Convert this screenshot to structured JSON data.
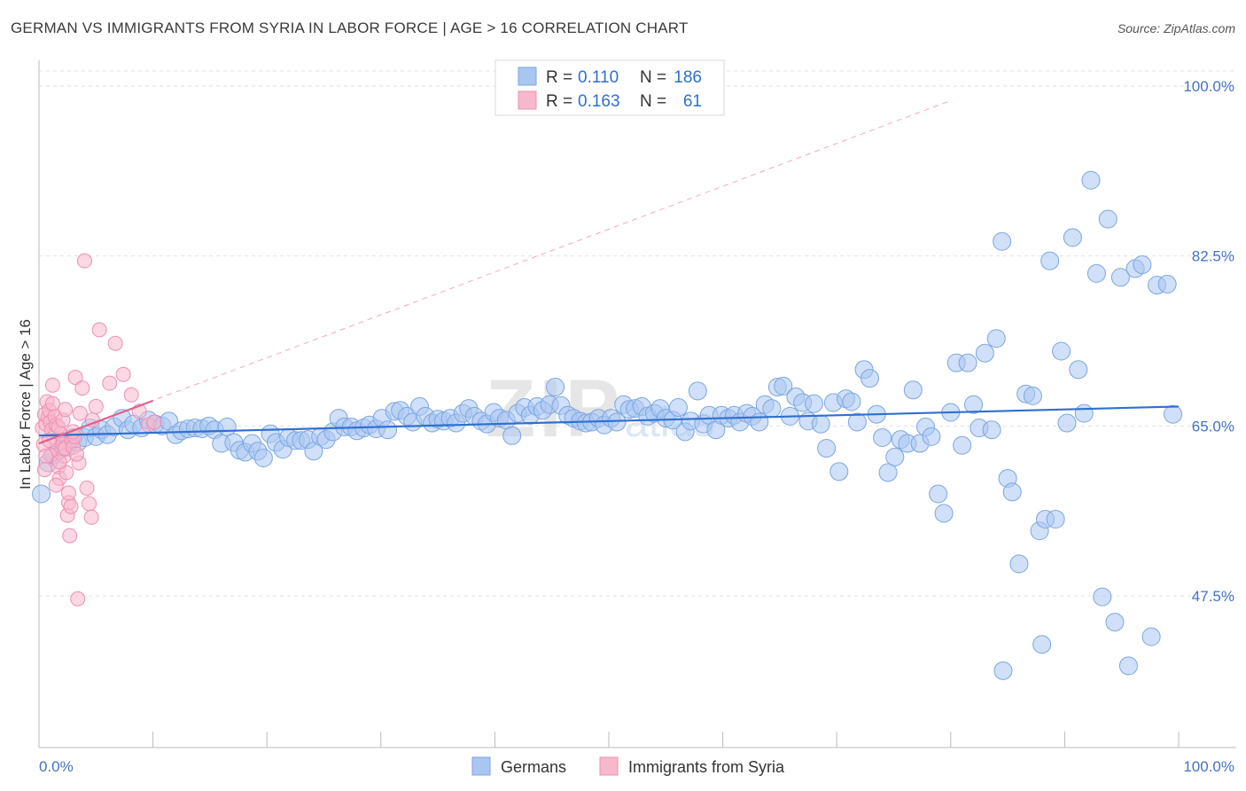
{
  "title": "GERMAN VS IMMIGRANTS FROM SYRIA IN LABOR FORCE | AGE > 16 CORRELATION CHART",
  "source": "Source: ZipAtlas.com",
  "watermark": {
    "zip": "ZIP",
    "atlas": "atlas"
  },
  "legend": {
    "rows": [
      {
        "r_label": "R =",
        "r_value": "0.110",
        "n_label": "N =",
        "n_value": "186",
        "color": "#a9c6f2"
      },
      {
        "r_label": "R =",
        "r_value": "0.163",
        "n_label": "N =",
        "n_value": "61",
        "color": "#f7b8cc"
      }
    ]
  },
  "bottom_legend": [
    "Germans",
    "Immigrants from Syria"
  ],
  "chart_data": {
    "type": "scatter",
    "ylabel": "In Labor Force | Age > 16",
    "xlim": [
      0,
      100
    ],
    "ylim": [
      30,
      100
    ],
    "y_ticks": [
      {
        "value": 100,
        "label": "100.0%"
      },
      {
        "value": 82.5,
        "label": "82.5%"
      },
      {
        "value": 65,
        "label": "65.0%"
      },
      {
        "value": 47.5,
        "label": "47.5%"
      }
    ],
    "x_tick_labels": {
      "left": "0.0%",
      "right": "100.0%"
    },
    "grid": true,
    "legend_position": "top-center",
    "series": [
      {
        "name": "Germans",
        "color": "#7aa6e0",
        "fill": "#a9c6f2",
        "trend": {
          "x0": 0,
          "y0": 64.0,
          "x1": 100,
          "y1": 67.0
        },
        "points": [
          [
            0.2,
            58
          ],
          [
            0.8,
            61.2
          ],
          [
            1.3,
            62
          ],
          [
            1.8,
            62.5
          ],
          [
            2.2,
            63.4
          ],
          [
            2.5,
            62.8
          ],
          [
            3,
            63.8
          ],
          [
            3.4,
            63.3
          ],
          [
            4,
            63.8
          ],
          [
            4.5,
            64.8
          ],
          [
            5,
            63.9
          ],
          [
            5.5,
            64.6
          ],
          [
            6,
            64.1
          ],
          [
            6.6,
            64.9
          ],
          [
            7.3,
            65.8
          ],
          [
            7.8,
            64.6
          ],
          [
            8.3,
            65.2
          ],
          [
            9,
            64.8
          ],
          [
            9.6,
            65.6
          ],
          [
            10.2,
            65.2
          ],
          [
            10.8,
            65
          ],
          [
            11.4,
            65.5
          ],
          [
            12,
            64.1
          ],
          [
            12.5,
            64.5
          ],
          [
            13.1,
            64.7
          ],
          [
            13.7,
            64.8
          ],
          [
            14.3,
            64.7
          ],
          [
            14.9,
            65
          ],
          [
            15.4,
            64.6
          ],
          [
            16,
            63.2
          ],
          [
            16.5,
            64.9
          ],
          [
            17.1,
            63.3
          ],
          [
            17.6,
            62.5
          ],
          [
            18.1,
            62.3
          ],
          [
            18.7,
            63.2
          ],
          [
            19.2,
            62.4
          ],
          [
            19.7,
            61.7
          ],
          [
            20.3,
            64.2
          ],
          [
            20.8,
            63.3
          ],
          [
            21.4,
            62.6
          ],
          [
            21.9,
            63.8
          ],
          [
            22.5,
            63.5
          ],
          [
            23,
            63.5
          ],
          [
            23.6,
            63.6
          ],
          [
            24.1,
            62.4
          ],
          [
            24.7,
            63.9
          ],
          [
            25.2,
            63.6
          ],
          [
            25.8,
            64.4
          ],
          [
            26.3,
            65.8
          ],
          [
            26.8,
            64.9
          ],
          [
            27.4,
            64.9
          ],
          [
            27.9,
            64.5
          ],
          [
            28.5,
            64.8
          ],
          [
            29,
            65.1
          ],
          [
            29.6,
            64.7
          ],
          [
            30.1,
            65.8
          ],
          [
            30.6,
            64.6
          ],
          [
            31.2,
            66.5
          ],
          [
            31.7,
            66.6
          ],
          [
            32.3,
            66
          ],
          [
            32.8,
            65.4
          ],
          [
            33.4,
            67
          ],
          [
            33.9,
            66
          ],
          [
            34.5,
            65.3
          ],
          [
            35,
            65.7
          ],
          [
            35.5,
            65.5
          ],
          [
            36.1,
            65.8
          ],
          [
            36.6,
            65.3
          ],
          [
            37.2,
            66.3
          ],
          [
            37.7,
            66.8
          ],
          [
            38.2,
            66
          ],
          [
            38.8,
            65.5
          ],
          [
            39.3,
            65.2
          ],
          [
            39.9,
            66.4
          ],
          [
            40.4,
            65.8
          ],
          [
            41,
            65.6
          ],
          [
            41.5,
            64
          ],
          [
            42,
            66.3
          ],
          [
            42.6,
            66.9
          ],
          [
            43.1,
            66.1
          ],
          [
            43.7,
            67
          ],
          [
            44.2,
            66.6
          ],
          [
            44.8,
            67.2
          ],
          [
            45.3,
            69
          ],
          [
            45.8,
            67.1
          ],
          [
            46.4,
            66.1
          ],
          [
            46.9,
            65.8
          ],
          [
            47.5,
            65.5
          ],
          [
            48,
            65.3
          ],
          [
            48.5,
            65.4
          ],
          [
            49.1,
            65.8
          ],
          [
            49.6,
            65.1
          ],
          [
            50.2,
            65.8
          ],
          [
            50.7,
            65.4
          ],
          [
            51.3,
            67.2
          ],
          [
            51.8,
            66.7
          ],
          [
            52.3,
            66.8
          ],
          [
            52.9,
            67
          ],
          [
            53.4,
            66
          ],
          [
            54,
            66.3
          ],
          [
            54.5,
            66.8
          ],
          [
            55,
            65.8
          ],
          [
            55.6,
            65.6
          ],
          [
            56.1,
            66.9
          ],
          [
            56.7,
            64.4
          ],
          [
            57.2,
            65.5
          ],
          [
            57.8,
            68.6
          ],
          [
            58.3,
            65.2
          ],
          [
            58.8,
            66.1
          ],
          [
            59.4,
            64.6
          ],
          [
            59.9,
            66.1
          ],
          [
            60.5,
            65.8
          ],
          [
            61,
            66.1
          ],
          [
            61.5,
            65.4
          ],
          [
            62.1,
            66.3
          ],
          [
            62.6,
            66
          ],
          [
            63.2,
            65.4
          ],
          [
            63.7,
            67.2
          ],
          [
            64.3,
            66.8
          ],
          [
            64.8,
            69
          ],
          [
            65.3,
            69.1
          ],
          [
            65.9,
            66
          ],
          [
            66.4,
            68
          ],
          [
            67,
            67.4
          ],
          [
            67.5,
            65.5
          ],
          [
            68,
            67.3
          ],
          [
            68.6,
            65.2
          ],
          [
            69.1,
            62.7
          ],
          [
            69.7,
            67.4
          ],
          [
            70.2,
            60.3
          ],
          [
            70.8,
            67.8
          ],
          [
            71.3,
            67.5
          ],
          [
            71.8,
            65.4
          ],
          [
            72.4,
            70.8
          ],
          [
            72.9,
            69.9
          ],
          [
            73.5,
            66.2
          ],
          [
            74,
            63.8
          ],
          [
            74.5,
            60.2
          ],
          [
            75.1,
            61.8
          ],
          [
            75.6,
            63.6
          ],
          [
            76.2,
            63.2
          ],
          [
            76.7,
            68.7
          ],
          [
            77.3,
            63.2
          ],
          [
            77.8,
            64.9
          ],
          [
            78.3,
            63.9
          ],
          [
            78.9,
            58
          ],
          [
            79.4,
            56
          ],
          [
            80,
            66.4
          ],
          [
            80.5,
            71.5
          ],
          [
            81,
            63
          ],
          [
            81.5,
            71.5
          ],
          [
            82,
            67.2
          ],
          [
            82.5,
            64.8
          ],
          [
            83,
            72.5
          ],
          [
            83.6,
            64.6
          ],
          [
            84,
            74
          ],
          [
            84.5,
            84
          ],
          [
            85,
            59.6
          ],
          [
            85.4,
            58.2
          ],
          [
            86,
            50.8
          ],
          [
            86.6,
            68.3
          ],
          [
            87.2,
            68.1
          ],
          [
            87.8,
            54.2
          ],
          [
            88.3,
            55.4
          ],
          [
            88.7,
            82
          ],
          [
            89.2,
            55.4
          ],
          [
            89.7,
            72.7
          ],
          [
            90.2,
            65.3
          ],
          [
            90.7,
            84.4
          ],
          [
            91.2,
            70.8
          ],
          [
            91.7,
            66.3
          ],
          [
            92.3,
            90.3
          ],
          [
            92.8,
            80.7
          ],
          [
            93.3,
            47.4
          ],
          [
            93.8,
            86.3
          ],
          [
            94.4,
            44.8
          ],
          [
            94.9,
            80.3
          ],
          [
            95.6,
            40.3
          ],
          [
            96.2,
            81.2
          ],
          [
            96.8,
            81.6
          ],
          [
            97.6,
            43.3
          ],
          [
            98.1,
            79.5
          ],
          [
            99,
            79.6
          ],
          [
            99.5,
            66.2
          ],
          [
            88.0,
            42.5
          ],
          [
            84.6,
            39.8
          ]
        ]
      },
      {
        "name": "Immigrants from Syria",
        "color": "#ee8fb0",
        "fill": "#f7b8cc",
        "trend": {
          "x0": 0,
          "y0": 63.2,
          "x1": 10,
          "y1": 67.6
        },
        "trend_extended": {
          "x0": 0,
          "y0": 63.2,
          "x1": 80,
          "y1": 98.5
        },
        "points": [
          [
            0.3,
            64.8
          ],
          [
            0.5,
            66.2
          ],
          [
            0.6,
            65.2
          ],
          [
            0.7,
            67.5
          ],
          [
            0.8,
            65.9
          ],
          [
            0.9,
            66.6
          ],
          [
            1,
            65.4
          ],
          [
            1.1,
            64.6
          ],
          [
            1.2,
            69.2
          ],
          [
            1.3,
            63.8
          ],
          [
            1.4,
            66
          ],
          [
            1.5,
            65.1
          ],
          [
            1.6,
            62.6
          ],
          [
            1.7,
            60.8
          ],
          [
            1.8,
            59.6
          ],
          [
            1.9,
            64.2
          ],
          [
            2,
            62.5
          ],
          [
            2.1,
            63.1
          ],
          [
            2.2,
            61.9
          ],
          [
            2.3,
            62.7
          ],
          [
            2.4,
            60.2
          ],
          [
            2.5,
            55.8
          ],
          [
            2.6,
            57.1
          ],
          [
            2.7,
            53.7
          ],
          [
            2.8,
            56.7
          ],
          [
            2.9,
            63.5
          ],
          [
            3,
            62.8
          ],
          [
            3.1,
            63.9
          ],
          [
            3.2,
            70
          ],
          [
            3.4,
            47.2
          ],
          [
            3.5,
            61.2
          ],
          [
            3.8,
            68.9
          ],
          [
            4,
            82
          ],
          [
            4.2,
            58.6
          ],
          [
            4.4,
            57
          ],
          [
            4.6,
            55.6
          ],
          [
            5,
            67
          ],
          [
            5.3,
            74.9
          ],
          [
            6.2,
            69.4
          ],
          [
            6.7,
            73.5
          ],
          [
            7.4,
            70.3
          ],
          [
            8.1,
            68.2
          ],
          [
            8.8,
            66.5
          ],
          [
            9.6,
            65.1
          ],
          [
            10.1,
            65.4
          ],
          [
            1.0,
            62.0
          ],
          [
            0.4,
            63.1
          ],
          [
            1.7,
            64.9
          ],
          [
            2.1,
            65.6
          ],
          [
            0.6,
            61.9
          ],
          [
            3.3,
            62.1
          ],
          [
            1.5,
            58.9
          ],
          [
            0.9,
            63.5
          ],
          [
            2.6,
            58.1
          ],
          [
            1.2,
            67.3
          ],
          [
            3.6,
            66.3
          ],
          [
            0.5,
            60.5
          ],
          [
            2.3,
            66.7
          ],
          [
            4.7,
            65.6
          ],
          [
            1.8,
            61.3
          ],
          [
            3.0,
            64.4
          ]
        ]
      }
    ]
  }
}
